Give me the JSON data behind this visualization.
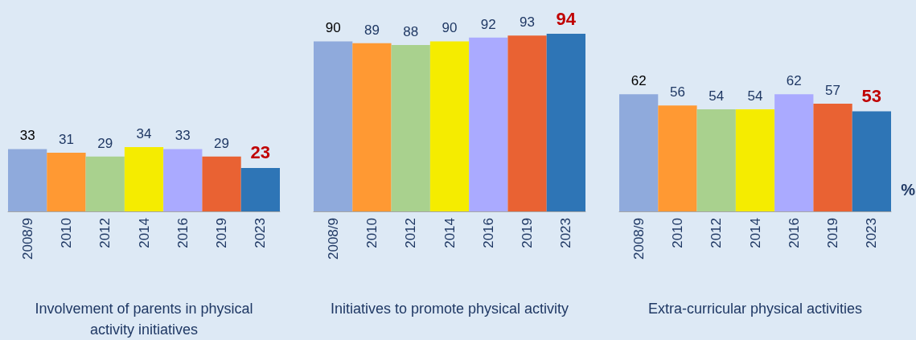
{
  "chart_data": [
    {
      "type": "bar",
      "xlabel": "Involvement of parents in physical activity initiatives",
      "categories": [
        "2008/9",
        "2010",
        "2012",
        "2014",
        "2016",
        "2019",
        "2023"
      ],
      "values": [
        33,
        31,
        29,
        34,
        33,
        29,
        23
      ],
      "colors": [
        "#8faadc",
        "#ff9933",
        "#a9d18e",
        "#f5ec00",
        "#aaaaff",
        "#e96233",
        "#2e75b6"
      ],
      "data_labels": true
    },
    {
      "type": "bar",
      "xlabel": "Initiatives to promote physical activity",
      "categories": [
        "2008/9",
        "2010",
        "2012",
        "2014",
        "2016",
        "2019",
        "2023"
      ],
      "values": [
        90,
        89,
        88,
        90,
        92,
        93,
        94
      ],
      "colors": [
        "#8faadc",
        "#ff9933",
        "#a9d18e",
        "#f5ec00",
        "#aaaaff",
        "#e96233",
        "#2e75b6"
      ],
      "data_labels": true
    },
    {
      "type": "bar",
      "xlabel": "Extra-curricular physical activities",
      "categories": [
        "2008/9",
        "2010",
        "2012",
        "2014",
        "2016",
        "2019",
        "2023"
      ],
      "values": [
        62,
        56,
        54,
        54,
        62,
        57,
        53
      ],
      "colors": [
        "#8faadc",
        "#ff9933",
        "#a9d18e",
        "#f5ec00",
        "#aaaaff",
        "#e96233",
        "#2e75b6"
      ],
      "data_labels": true,
      "annotations": [
        "%"
      ]
    }
  ]
}
